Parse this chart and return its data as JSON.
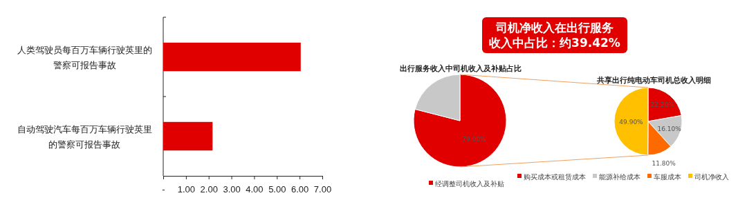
{
  "chart_data": [
    {
      "type": "bar",
      "orientation": "horizontal",
      "categories": [
        "人类驾驶员每百万车辆行驶英里的警察可报告事故",
        "自动驾驶汽车每百万车辆行驶英里的警察可报告事故"
      ],
      "values": [
        6.05,
        2.17
      ],
      "color": "#e00000",
      "xlim": [
        0,
        7
      ],
      "xticks": [
        {
          "value": 0,
          "label": "-"
        },
        {
          "value": 1,
          "label": "1.00"
        },
        {
          "value": 2,
          "label": "2.00"
        },
        {
          "value": 3,
          "label": "3.00"
        },
        {
          "value": 4,
          "label": "4.00"
        },
        {
          "value": 5,
          "label": "5.00"
        },
        {
          "value": 6,
          "label": "6.00"
        },
        {
          "value": 7,
          "label": "7.00"
        }
      ],
      "grid": false,
      "legend": false
    },
    {
      "type": "pie",
      "title": "出行服务收入中司机收入及补贴占比",
      "categories": [
        "经调整司机收入及补贴",
        null
      ],
      "values": [
        79,
        21
      ],
      "colors": [
        "#e00000",
        "#c8c8c8"
      ],
      "value_labels": [
        "79.00%",
        null
      ],
      "legend": "bottom",
      "annotations": [
        "司机净收入在出行服务收入中占比：约39.42%"
      ]
    },
    {
      "type": "pie",
      "title": "共享出行纯电动车司机总收入明细",
      "categories": [
        "购买成本或租赁成本",
        "能源补给成本",
        "车服成本",
        "司机净收入"
      ],
      "values": [
        22.2,
        16.1,
        11.8,
        49.9
      ],
      "colors": [
        "#e00000",
        "#c8c8c8",
        "#ff6a00",
        "#ffc000"
      ],
      "value_labels": [
        "22.20%",
        "16.10%",
        "11.80%",
        "49.90%"
      ],
      "legend": "bottom"
    }
  ]
}
